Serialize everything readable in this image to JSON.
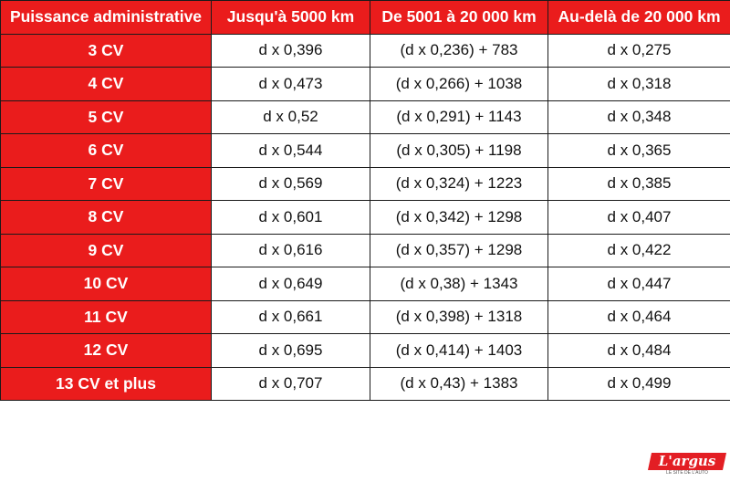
{
  "table": {
    "headers": [
      "Puissance administrative",
      "Jusqu'à 5000 km",
      "De 5001 à 20 000 km",
      "Au-delà de 20 000 km"
    ],
    "rows": [
      [
        "3 CV",
        "d x 0,396",
        "(d x 0,236) + 783",
        "d x 0,275"
      ],
      [
        "4 CV",
        "d x 0,473",
        "(d x 0,266) + 1038",
        "d x 0,318"
      ],
      [
        "5 CV",
        "d x 0,52",
        "(d x 0,291) + 1143",
        "d x 0,348"
      ],
      [
        "6 CV",
        "d x 0,544",
        "(d x 0,305) + 1198",
        "d x 0,365"
      ],
      [
        "7 CV",
        "d x 0,569",
        "(d x 0,324) + 1223",
        "d x 0,385"
      ],
      [
        "8 CV",
        "d x 0,601",
        "(d x 0,342) + 1298",
        "d x 0,407"
      ],
      [
        "9 CV",
        "d x 0,616",
        "(d x 0,357) + 1298",
        "d x 0,422"
      ],
      [
        "10 CV",
        "d x 0,649",
        "(d x 0,38) + 1343",
        "d x 0,447"
      ],
      [
        "11 CV",
        "d x 0,661",
        "(d x 0,398) + 1318",
        "d x 0,464"
      ],
      [
        "12 CV",
        "d x 0,695",
        "(d x 0,414) + 1403",
        "d x 0,484"
      ],
      [
        "13 CV et plus",
        "d x 0,707",
        "(d x 0,43) + 1383",
        "d x 0,499"
      ]
    ]
  },
  "logo": {
    "name": "L'argus",
    "subtitle": "LE SITE DE L'AUTO"
  },
  "colors": {
    "header_red": "#ea1c1c",
    "logo_red": "#e31e24"
  }
}
